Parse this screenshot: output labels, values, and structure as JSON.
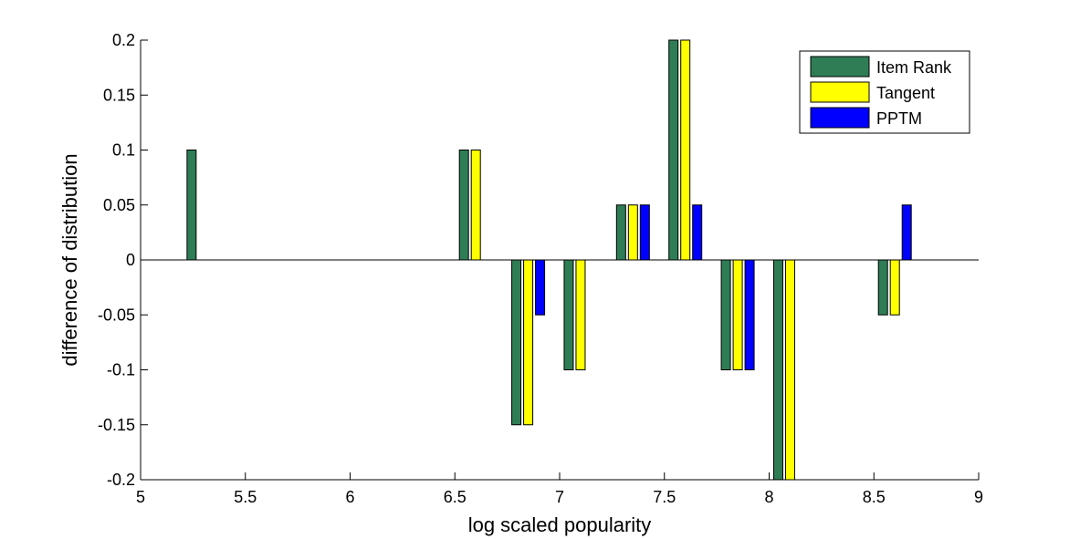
{
  "chart_data": {
    "type": "bar",
    "xlabel": "log scaled popularity",
    "ylabel": "difference of distribution",
    "xlim": [
      5,
      9
    ],
    "ylim": [
      -0.2,
      0.2
    ],
    "xticks": [
      "5",
      "5.5",
      "6",
      "6.5",
      "7",
      "7.5",
      "8",
      "8.5",
      "9"
    ],
    "yticks": [
      "-0.2",
      "-0.15",
      "-0.1",
      "-0.05",
      "0",
      "0.05",
      "0.1",
      "0.15",
      "0.2"
    ],
    "grid": false,
    "legend_position": "top-right",
    "categories": [
      5.3,
      6.6,
      6.85,
      7.1,
      7.35,
      7.6,
      7.85,
      8.1,
      8.6
    ],
    "series": [
      {
        "name": "Item Rank",
        "color": "#2e7d55",
        "values": [
          0.1,
          0.1,
          -0.15,
          -0.1,
          0.05,
          0.2,
          -0.1,
          -0.2,
          -0.05
        ]
      },
      {
        "name": "Tangent",
        "color": "#ffff00",
        "values": [
          0,
          0.1,
          -0.15,
          -0.1,
          0.05,
          0.2,
          -0.1,
          -0.2,
          -0.05
        ]
      },
      {
        "name": "PPTM",
        "color": "#0000ff",
        "values": [
          0,
          0,
          -0.05,
          0,
          0.05,
          0.05,
          -0.1,
          0,
          0.05
        ]
      }
    ]
  }
}
